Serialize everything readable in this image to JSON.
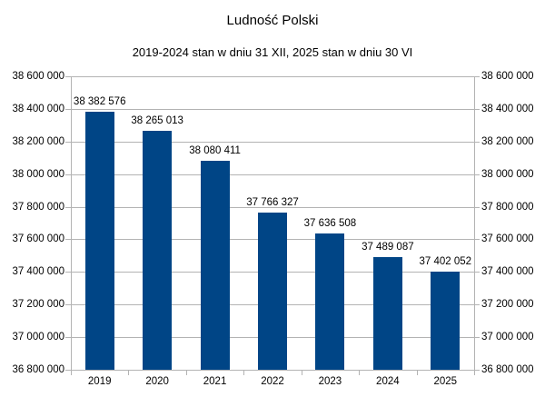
{
  "chart_data": {
    "type": "bar",
    "title": "Ludność Polski",
    "subtitle": "2019-2024 stan w dniu 31 XII, 2025 stan w dniu 30 VI",
    "categories": [
      "2019",
      "2020",
      "2021",
      "2022",
      "2023",
      "2024",
      "2025"
    ],
    "values": [
      38382576,
      38265013,
      38080411,
      37766327,
      37636508,
      37489087,
      37402052
    ],
    "value_labels": [
      "38 382 576",
      "38 265 013",
      "38 080 411",
      "37 766 327",
      "37 636 508",
      "37 489 087",
      "37 402 052"
    ],
    "xlabel": "",
    "ylabel": "",
    "ylim": [
      36800000,
      38600000
    ],
    "yticks": [
      "38 600 000",
      "38 400 000",
      "38 200 000",
      "38 000 000",
      "37 800 000",
      "37 600 000",
      "37 400 000",
      "37 200 000",
      "37 000 000",
      "36 800 000"
    ],
    "secondary_yaxis": true,
    "grid": true,
    "legend": "none",
    "bar_color": "#004586"
  }
}
